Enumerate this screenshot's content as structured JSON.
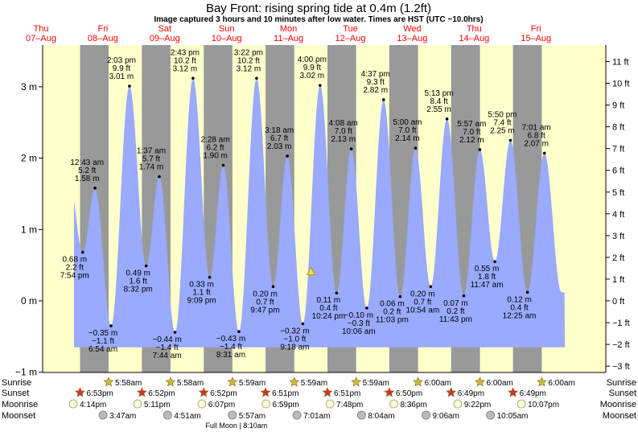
{
  "header": {
    "title": "Bay Front: rising  spring tide at 0.4m (1.2ft)",
    "subtitle": "Image captured 3 hours and 10 minutes after low water. Times are HST (UTC −10.0hrs)"
  },
  "colors": {
    "day": "#ffffcc",
    "night": "#999999",
    "water": "#99aaff",
    "day_label": "#ff0000",
    "star": "#cc3333",
    "sun": "#ccbb44",
    "moon": "#ffffcc",
    "moonset": "#bbbbbb"
  },
  "chart_data": {
    "type": "area",
    "ylim_m": [
      -1,
      3.5
    ],
    "y_ticks_m": [
      {
        "v": 3,
        "label": "3 m"
      },
      {
        "v": 2,
        "label": "2 m"
      },
      {
        "v": 1,
        "label": "1 m"
      },
      {
        "v": 0,
        "label": "0 m"
      },
      {
        "v": -1,
        "label": "−1 m"
      }
    ],
    "y_ticks_ft": [
      {
        "v": 11,
        "label": "11 ft"
      },
      {
        "v": 10,
        "label": "10 ft"
      },
      {
        "v": 9,
        "label": "9 ft"
      },
      {
        "v": 8,
        "label": "8 ft"
      },
      {
        "v": 7,
        "label": "7 ft"
      },
      {
        "v": 6,
        "label": "6 ft"
      },
      {
        "v": 5,
        "label": "5 ft"
      },
      {
        "v": 4,
        "label": "4 ft"
      },
      {
        "v": 3,
        "label": "3 ft"
      },
      {
        "v": 2,
        "label": "2 ft"
      },
      {
        "v": 1,
        "label": "1 ft"
      },
      {
        "v": 0,
        "label": "0 ft"
      },
      {
        "v": -1,
        "label": "−1 ft"
      },
      {
        "v": -2,
        "label": "−2 ft"
      },
      {
        "v": -3,
        "label": "−3 ft"
      }
    ],
    "days": [
      {
        "dow": "Thu",
        "date": "07–Aug"
      },
      {
        "dow": "Fri",
        "date": "08–Aug"
      },
      {
        "dow": "Sat",
        "date": "09–Aug"
      },
      {
        "dow": "Sun",
        "date": "10–Aug"
      },
      {
        "dow": "Mon",
        "date": "11–Aug"
      },
      {
        "dow": "Tue",
        "date": "12–Aug"
      },
      {
        "dow": "Wed",
        "date": "13–Aug"
      },
      {
        "dow": "Thu",
        "date": "14–Aug"
      },
      {
        "dow": "Fri",
        "date": "15–Aug"
      }
    ],
    "nights": [
      {
        "set_day": 0,
        "set": "18:53",
        "rise": "05:58"
      },
      {
        "set_day": 1,
        "set": "18:52",
        "rise": "05:58"
      },
      {
        "set_day": 2,
        "set": "18:52",
        "rise": "05:59"
      },
      {
        "set_day": 3,
        "set": "18:51",
        "rise": "05:59"
      },
      {
        "set_day": 4,
        "set": "18:51",
        "rise": "05:59"
      },
      {
        "set_day": 5,
        "set": "18:50",
        "rise": "06:00"
      },
      {
        "set_day": 6,
        "set": "18:49",
        "rise": "06:00"
      },
      {
        "set_day": 7,
        "set": "18:49",
        "rise": "06:00"
      }
    ],
    "tides": [
      {
        "day": 0,
        "time": "19:54",
        "t": "7:54 pm",
        "m": 0.68,
        "mlabel": "0.68 m",
        "ft": "2.2 ft"
      },
      {
        "day": 1,
        "time": "00:43",
        "t": "12:43 am",
        "m": 1.58,
        "mlabel": "1.58 m",
        "ft": "5.2 ft"
      },
      {
        "day": 1,
        "time": "06:54",
        "t": "6:54 am",
        "m": -0.35,
        "mlabel": "−0.35 m",
        "ft": "−1.1 ft"
      },
      {
        "day": 1,
        "time": "14:03",
        "t": "2:03 pm",
        "m": 3.01,
        "mlabel": "3.01 m",
        "ft": "9.9 ft"
      },
      {
        "day": 1,
        "time": "20:32",
        "t": "8:32 pm",
        "m": 0.49,
        "mlabel": "0.49 m",
        "ft": "1.6 ft"
      },
      {
        "day": 2,
        "time": "01:37",
        "t": "1:37 am",
        "m": 1.74,
        "mlabel": "1.74 m",
        "ft": "5.7 ft"
      },
      {
        "day": 2,
        "time": "07:44",
        "t": "7:44 am",
        "m": -0.44,
        "mlabel": "−0.44 m",
        "ft": "−1.4 ft"
      },
      {
        "day": 2,
        "time": "14:43",
        "t": "2:43 pm",
        "m": 3.12,
        "mlabel": "3.12 m",
        "ft": "10.2 ft"
      },
      {
        "day": 2,
        "time": "21:09",
        "t": "9:09 pm",
        "m": 0.33,
        "mlabel": "0.33 m",
        "ft": "1.1 ft"
      },
      {
        "day": 3,
        "time": "02:28",
        "t": "2:28 am",
        "m": 1.9,
        "mlabel": "1.90 m",
        "ft": "6.2 ft"
      },
      {
        "day": 3,
        "time": "08:31",
        "t": "8:31 am",
        "m": -0.43,
        "mlabel": "−0.43 m",
        "ft": "−1.4 ft"
      },
      {
        "day": 3,
        "time": "15:22",
        "t": "3:22 pm",
        "m": 3.12,
        "mlabel": "3.12 m",
        "ft": "10.2 ft"
      },
      {
        "day": 3,
        "time": "21:47",
        "t": "9:47 pm",
        "m": 0.2,
        "mlabel": "0.20 m",
        "ft": "0.7 ft"
      },
      {
        "day": 4,
        "time": "03:18",
        "t": "3:18 am",
        "m": 2.03,
        "mlabel": "2.03 m",
        "ft": "6.7 ft"
      },
      {
        "day": 4,
        "time": "09:18",
        "t": "9:18 am",
        "m": -0.32,
        "mlabel": "−0.32 m",
        "ft": "−1.0 ft"
      },
      {
        "day": 4,
        "time": "16:00",
        "t": "4:00 pm",
        "m": 3.02,
        "mlabel": "3.02 m",
        "ft": "9.9 ft"
      },
      {
        "day": 4,
        "time": "22:24",
        "t": "10:24 pm",
        "m": 0.11,
        "mlabel": "0.11 m",
        "ft": "0.4 ft"
      },
      {
        "day": 5,
        "time": "04:08",
        "t": "4:08 am",
        "m": 2.13,
        "mlabel": "2.13 m",
        "ft": "7.0 ft"
      },
      {
        "day": 5,
        "time": "10:06",
        "t": "10:06 am",
        "m": -0.1,
        "mlabel": "−0.10 m",
        "ft": "−0.3 ft"
      },
      {
        "day": 5,
        "time": "16:37",
        "t": "4:37 pm",
        "m": 2.82,
        "mlabel": "2.82 m",
        "ft": "9.3 ft"
      },
      {
        "day": 5,
        "time": "23:03",
        "t": "11:03 pm",
        "m": 0.06,
        "mlabel": "0.06 m",
        "ft": "0.2 ft"
      },
      {
        "day": 6,
        "time": "05:00",
        "t": "5:00 am",
        "m": 2.14,
        "mlabel": "2.14 m",
        "ft": "7.0 ft"
      },
      {
        "day": 6,
        "time": "10:54",
        "t": "10:54 am",
        "m": 0.2,
        "mlabel": "0.20 m",
        "ft": "0.7 ft"
      },
      {
        "day": 6,
        "time": "17:13",
        "t": "5:13 pm",
        "m": 2.55,
        "mlabel": "2.55 m",
        "ft": "8.4 ft"
      },
      {
        "day": 6,
        "time": "23:43",
        "t": "11:43 pm",
        "m": 0.07,
        "mlabel": "0.07 m",
        "ft": "0.2 ft"
      },
      {
        "day": 7,
        "time": "05:57",
        "t": "5:57 am",
        "m": 2.12,
        "mlabel": "2.12 m",
        "ft": "7.0 ft"
      },
      {
        "day": 7,
        "time": "11:47",
        "t": "11:47 am",
        "m": 0.55,
        "mlabel": "0.55 m",
        "ft": "1.8 ft"
      },
      {
        "day": 7,
        "time": "17:50",
        "t": "5:50 pm",
        "m": 2.25,
        "mlabel": "2.25 m",
        "ft": "7.4 ft"
      },
      {
        "day": 8,
        "time": "00:25",
        "t": "12:25 am",
        "m": 0.12,
        "mlabel": "0.12 m",
        "ft": "0.4 ft"
      },
      {
        "day": 8,
        "time": "07:01",
        "t": "7:01 am",
        "m": 2.07,
        "mlabel": "2.07 m",
        "ft": "6.8 ft"
      }
    ],
    "now_marker": {
      "day": 4,
      "time": "12:28",
      "m": 0.4
    }
  },
  "events": {
    "labels": {
      "sunrise": "Sunrise",
      "sunset": "Sunset",
      "moonrise": "Moonrise",
      "moonset": "Moonset"
    },
    "sunrise": [
      {
        "day": 1,
        "time": "05:58",
        "t": "5:58am"
      },
      {
        "day": 2,
        "time": "05:58",
        "t": "5:58am"
      },
      {
        "day": 3,
        "time": "05:59",
        "t": "5:59am"
      },
      {
        "day": 4,
        "time": "05:59",
        "t": "5:59am"
      },
      {
        "day": 5,
        "time": "05:59",
        "t": "5:59am"
      },
      {
        "day": 6,
        "time": "06:00",
        "t": "6:00am"
      },
      {
        "day": 7,
        "time": "06:00",
        "t": "6:00am"
      },
      {
        "day": 8,
        "time": "06:00",
        "t": "6:00am"
      }
    ],
    "sunset": [
      {
        "day": 0,
        "time": "18:53",
        "t": "6:53pm"
      },
      {
        "day": 1,
        "time": "18:52",
        "t": "6:52pm"
      },
      {
        "day": 2,
        "time": "18:52",
        "t": "6:52pm"
      },
      {
        "day": 3,
        "time": "18:51",
        "t": "6:51pm"
      },
      {
        "day": 4,
        "time": "18:51",
        "t": "6:51pm"
      },
      {
        "day": 5,
        "time": "18:50",
        "t": "6:50pm"
      },
      {
        "day": 6,
        "time": "18:49",
        "t": "6:49pm"
      },
      {
        "day": 7,
        "time": "18:49",
        "t": "6:49pm"
      }
    ],
    "moonrise": [
      {
        "day": 0,
        "time": "16:14",
        "t": "4:14pm"
      },
      {
        "day": 1,
        "time": "17:11",
        "t": "5:11pm"
      },
      {
        "day": 2,
        "time": "18:07",
        "t": "6:07pm"
      },
      {
        "day": 3,
        "time": "18:59",
        "t": "6:59pm"
      },
      {
        "day": 4,
        "time": "19:48",
        "t": "7:48pm"
      },
      {
        "day": 5,
        "time": "20:36",
        "t": "8:36pm"
      },
      {
        "day": 6,
        "time": "21:22",
        "t": "9:22pm"
      },
      {
        "day": 7,
        "time": "22:07",
        "t": "10:07pm"
      }
    ],
    "moonset": [
      {
        "day": 1,
        "time": "03:47",
        "t": "3:47am"
      },
      {
        "day": 2,
        "time": "04:51",
        "t": "4:51am"
      },
      {
        "day": 3,
        "time": "05:57",
        "t": "5:57am"
      },
      {
        "day": 4,
        "time": "07:01",
        "t": "7:01am"
      },
      {
        "day": 5,
        "time": "08:04",
        "t": "8:04am"
      },
      {
        "day": 6,
        "time": "09:06",
        "t": "9:06am"
      },
      {
        "day": 7,
        "time": "10:05",
        "t": "10:05am"
      }
    ],
    "full_moon": {
      "day": 3,
      "time": "08:10",
      "label": "Full Moon | 8:10am"
    }
  }
}
